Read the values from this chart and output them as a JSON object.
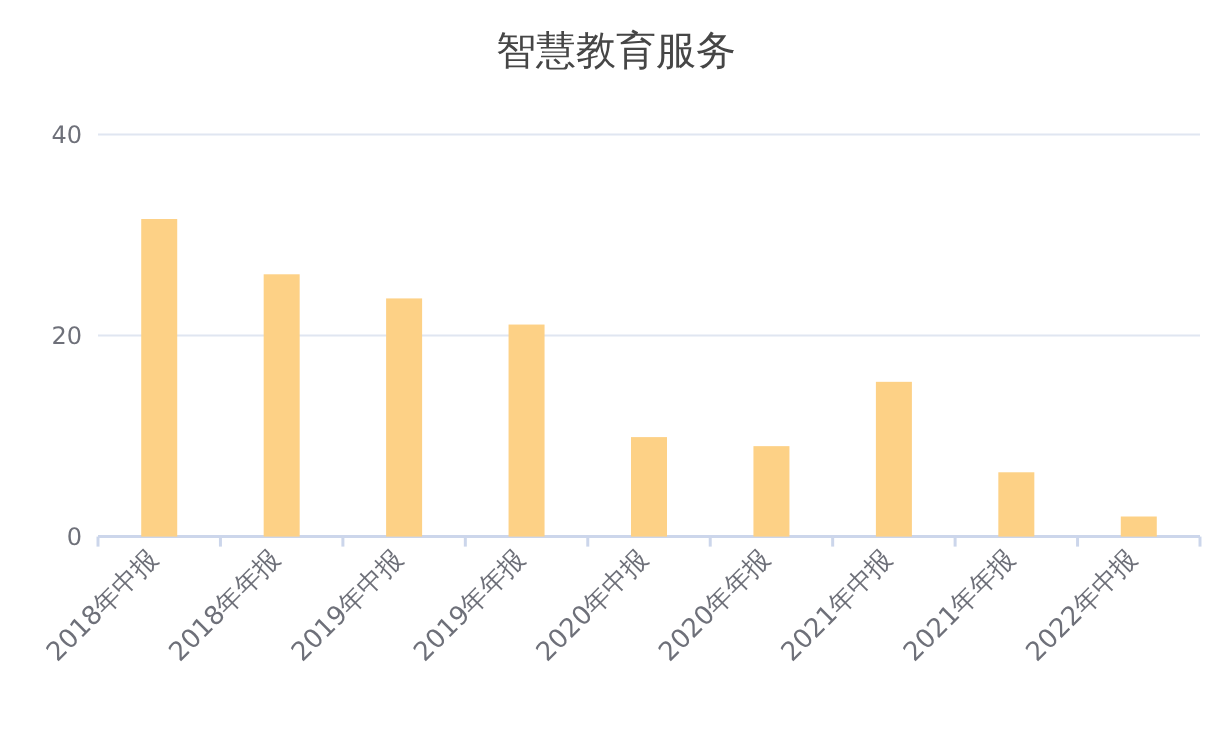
{
  "chart_data": {
    "type": "bar",
    "title": "智慧教育服务",
    "categories": [
      "2018年中报",
      "2018年年报",
      "2019年中报",
      "2019年年报",
      "2020年中报",
      "2020年年报",
      "2021年中报",
      "2021年年报",
      "2022年中报"
    ],
    "values": [
      31.6,
      26.1,
      23.7,
      21.1,
      9.9,
      9.0,
      15.4,
      6.4,
      2.0
    ],
    "color": "#fdd186",
    "ylim": [
      0,
      40
    ],
    "yticks": [
      0,
      20,
      40
    ],
    "grid": "y"
  }
}
